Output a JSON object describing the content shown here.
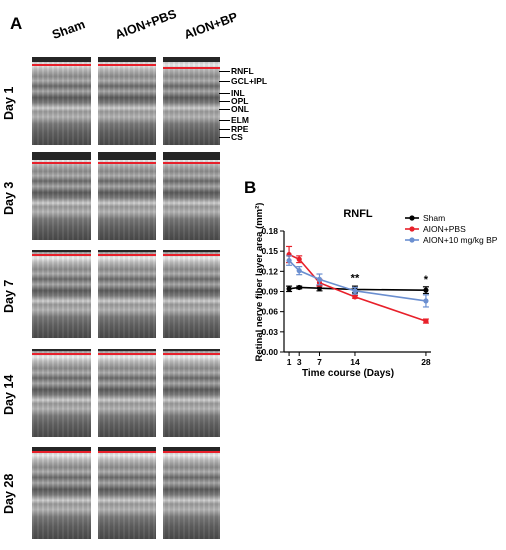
{
  "panel_a": {
    "letter": "A",
    "columns": [
      "Sham",
      "AION+PBS",
      "AION+BP"
    ],
    "rows": [
      "Day 1",
      "Day 3",
      "Day 7",
      "Day 14",
      "Day 28"
    ],
    "layer_labels": [
      "RNFL",
      "GCL+IPL",
      "INL",
      "OPL",
      "ONL",
      "ELM",
      "RPE",
      "CS"
    ]
  },
  "panel_b": {
    "letter": "B"
  },
  "chart_data": {
    "type": "line",
    "title": "RNFL",
    "xlabel": "Time course (Days)",
    "ylabel": "Retinal nerve fiber layer area (mm²)",
    "x": [
      1,
      3,
      7,
      14,
      28
    ],
    "x_ticks": [
      1,
      3,
      7,
      14,
      28
    ],
    "xlim": [
      0,
      29
    ],
    "ylim": [
      0,
      0.18
    ],
    "y_ticks": [
      0.0,
      0.03,
      0.06,
      0.09,
      0.12,
      0.15,
      0.18
    ],
    "grid": false,
    "legend_position": "top-right",
    "series": [
      {
        "name": "Sham",
        "color": "#000000",
        "values": [
          0.094,
          0.096,
          0.095,
          0.093,
          0.092
        ],
        "errors": [
          0.004,
          0.002,
          0.004,
          0.005,
          0.005
        ]
      },
      {
        "name": "AION+PBS",
        "color": "#e8202a",
        "values": [
          0.145,
          0.138,
          0.103,
          0.082,
          0.046
        ],
        "errors": [
          0.012,
          0.005,
          0.005,
          0.002,
          0.003
        ]
      },
      {
        "name": "AION+10 mg/kg BP",
        "color": "#6b8fd0",
        "values": [
          0.136,
          0.121,
          0.108,
          0.091,
          0.076
        ],
        "errors": [
          0.007,
          0.006,
          0.008,
          0.005,
          0.009
        ]
      }
    ],
    "annotations": [
      {
        "x": 14,
        "y": 0.105,
        "text": "**"
      },
      {
        "x": 28,
        "y": 0.103,
        "text": "*"
      }
    ]
  }
}
